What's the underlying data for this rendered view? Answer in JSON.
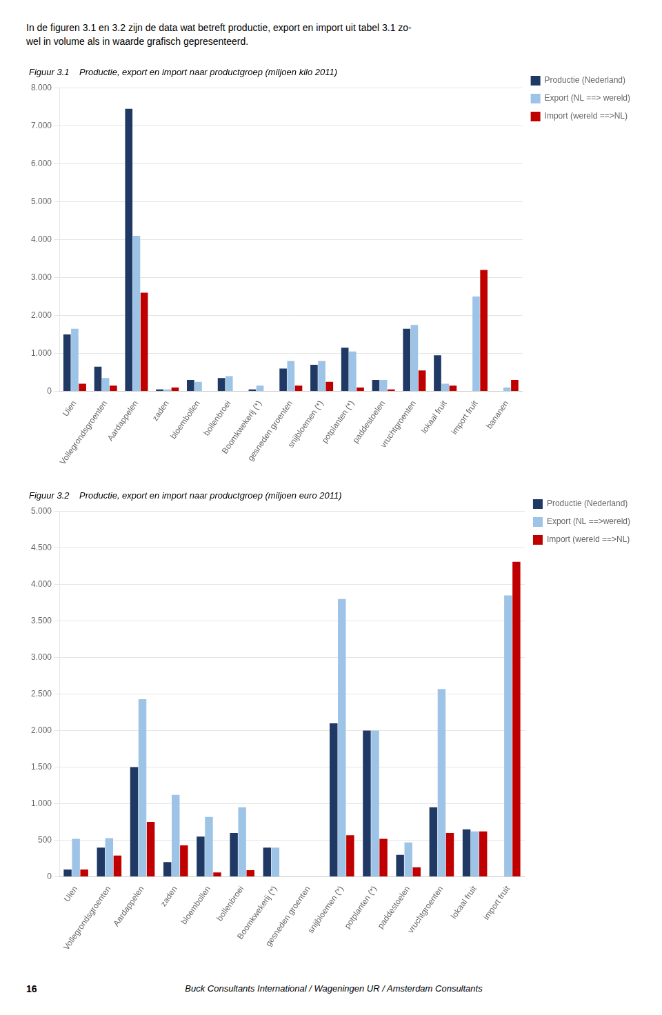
{
  "header": [
    "In de figuren 3.1 en 3.2 zijn de data wat betreft productie, export en import uit tabel 3.1 zo-",
    "wel in volume als in waarde grafisch gepresenteerd."
  ],
  "footer": [
    "16",
    "Buck Consultants International / Wageningen UR / Amsterdam Consultants"
  ],
  "chart_data": [
    {
      "type": "bar",
      "title": "Figuur 3.1    Productie, export en import naar productgroep (miljoen kilo 2011)",
      "categories": [
        "Uien",
        "Vollegrondsgroenten",
        "Aardappelen",
        "zaden",
        "bloembollen",
        "bollenbroei",
        "Boomkwekerij (*)",
        "gesneden groenten",
        "snijbloemen (*)",
        "potplanten (*)",
        "paddestoelen",
        "vruchtgroenten",
        "lokaal fruit",
        "import fruit",
        "bananen"
      ],
      "series": [
        {
          "name": "Productie (Nederland)",
          "color": "#1F3864",
          "values": [
            1500,
            650,
            7450,
            50,
            300,
            350,
            50,
            600,
            700,
            1150,
            300,
            1650,
            950,
            0,
            0
          ]
        },
        {
          "name": "Export (NL ==> wereld)",
          "color": "#9DC3E6",
          "values": [
            1650,
            350,
            4100,
            50,
            250,
            400,
            150,
            800,
            800,
            1050,
            300,
            1750,
            200,
            2500,
            100
          ]
        },
        {
          "name": "Import (wereld ==>NL)",
          "color": "#C00000",
          "values": [
            200,
            150,
            2600,
            100,
            0,
            0,
            0,
            150,
            250,
            100,
            50,
            550,
            150,
            3200,
            300
          ]
        }
      ],
      "ylim": [
        0,
        8000
      ],
      "yticks": [
        0,
        {
          "value": 1000,
          "label": "1.000"
        },
        {
          "value": 2000,
          "label": "2.000"
        },
        {
          "value": 3000,
          "label": "3.000"
        },
        {
          "value": 4000,
          "label": "4.000"
        },
        {
          "value": 5000,
          "label": "5.000"
        },
        {
          "value": 6000,
          "label": "6.000"
        },
        {
          "value": 7000,
          "label": "7.000"
        },
        {
          "value": 8000,
          "label": "8.000"
        }
      ],
      "grid": true,
      "legend": "right"
    },
    {
      "type": "bar",
      "title": "Figuur 3.2    Productie, export en import naar productgroep (miljoen euro 2011)",
      "categories": [
        "Uien",
        "Vollegrondsgroenten",
        "Aardappelen",
        "zaden",
        "bloembollen",
        "bollenbroei",
        "Boomkwekerij (*)",
        "gesneden groenten",
        "snijbloemen (*)",
        "potplanten (*)",
        "paddestoelen",
        "vruchtgroenten",
        "lokaal fruit",
        "import fruit"
      ],
      "series": [
        {
          "name": "Productie (Nederland)",
          "color": "#1F3864",
          "values": [
            100,
            400,
            1500,
            200,
            550,
            600,
            400,
            0,
            2100,
            2000,
            300,
            950,
            650,
            0
          ]
        },
        {
          "name": "Export (NL ==>wereld)",
          "color": "#9DC3E6",
          "values": [
            520,
            530,
            2430,
            1120,
            820,
            950,
            400,
            0,
            3800,
            2000,
            470,
            2570,
            620,
            3850
          ]
        },
        {
          "name": "Import (wereld ==>NL)",
          "color": "#C00000",
          "values": [
            100,
            290,
            750,
            430,
            60,
            90,
            0,
            0,
            570,
            520,
            130,
            600,
            620,
            4310
          ]
        }
      ],
      "ylim": [
        0,
        5000
      ],
      "yticks": [
        0,
        500,
        {
          "value": 1000,
          "label": "1.000"
        },
        {
          "value": 1500,
          "label": "1.500"
        },
        {
          "value": 2000,
          "label": "2.000"
        },
        {
          "value": 2500,
          "label": "2.500"
        },
        {
          "value": 3000,
          "label": "3.000"
        },
        {
          "value": 3500,
          "label": "3.500"
        },
        {
          "value": 4000,
          "label": "4.000"
        },
        {
          "value": 4500,
          "label": "4.500"
        },
        {
          "value": 5000,
          "label": "5.000"
        }
      ],
      "grid": true,
      "legend": "right"
    }
  ]
}
